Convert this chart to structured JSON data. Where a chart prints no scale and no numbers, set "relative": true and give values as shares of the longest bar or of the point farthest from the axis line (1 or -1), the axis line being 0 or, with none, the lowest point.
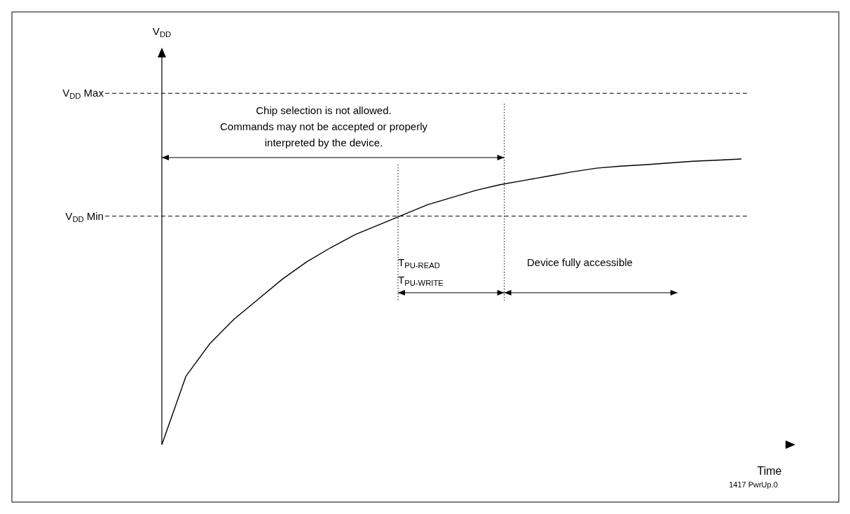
{
  "chart_data": {
    "type": "line",
    "relative": true,
    "xlabel": "Time",
    "categories": [
      null,
      null,
      null,
      null,
      null,
      null,
      null,
      null,
      null,
      null,
      null,
      null,
      null,
      null,
      null,
      null,
      null,
      null,
      null,
      null,
      null,
      null,
      null,
      null,
      null,
      null,
      null
    ],
    "series": [
      {
        "color": "#000000",
        "values": [
          0,
          0.24,
          0.355,
          0.44,
          0.51,
          0.58,
          0.64,
          0.69,
          0.735,
          0.77,
          0.805,
          0.84,
          0.865,
          0.89,
          0.91,
          0.925,
          0.94,
          0.955,
          0.968,
          0.975,
          0.98,
          0.986,
          0.992,
          0.996,
          1,
          null,
          null
        ]
      }
    ],
    "ref_lines": [
      {
        "axis": "y",
        "value": 1.23,
        "label": "V$_{DD}$ Max",
        "line_style": "dashed"
      },
      {
        "axis": "y",
        "value": 0.8,
        "label": "V$_{DD}$ Min",
        "line_style": "dashed"
      }
    ],
    "annotations": [
      "Chip selection is not allowed.",
      "Commands may not be accepted or properly",
      "interpreted by the device.",
      "T$_{PU-READ}$",
      "T$_{PU-WRITE}$",
      "Device fully  accessible",
      "1417 PwrUp.0",
      "V$_{DD}$"
    ]
  }
}
